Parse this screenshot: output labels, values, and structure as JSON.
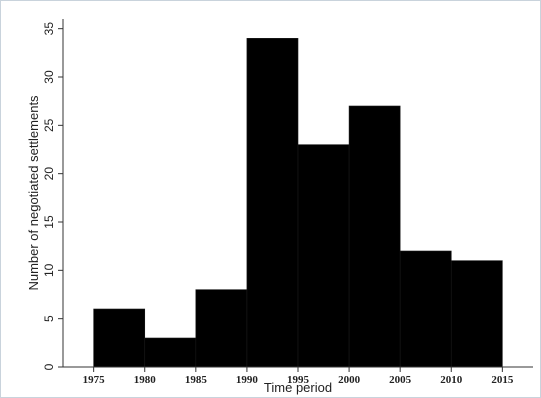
{
  "chart_data": {
    "type": "bar",
    "title": "",
    "xlabel": "Time period",
    "ylabel": "Number of negotiated settlements",
    "xlim": [
      1972,
      2018
    ],
    "ylim": [
      0,
      36
    ],
    "xticks": [
      1975,
      1980,
      1985,
      1990,
      1995,
      2000,
      2005,
      2010,
      2015
    ],
    "yticks": [
      0,
      5,
      10,
      15,
      20,
      25,
      30,
      35
    ],
    "bins": [
      {
        "start": 1975,
        "end": 1980,
        "value": 6
      },
      {
        "start": 1980,
        "end": 1985,
        "value": 3
      },
      {
        "start": 1985,
        "end": 1990,
        "value": 8
      },
      {
        "start": 1990,
        "end": 1995,
        "value": 34
      },
      {
        "start": 1995,
        "end": 2000,
        "value": 23
      },
      {
        "start": 2000,
        "end": 2005,
        "value": 27
      },
      {
        "start": 2005,
        "end": 2010,
        "value": 12
      },
      {
        "start": 2010,
        "end": 2015,
        "value": 11
      }
    ],
    "grid": false,
    "legend": "none",
    "colors": {
      "bar": "#000000",
      "axis": "#333333",
      "plot_bg": "#ffffff",
      "frame_border": "#c9d3dc"
    }
  }
}
